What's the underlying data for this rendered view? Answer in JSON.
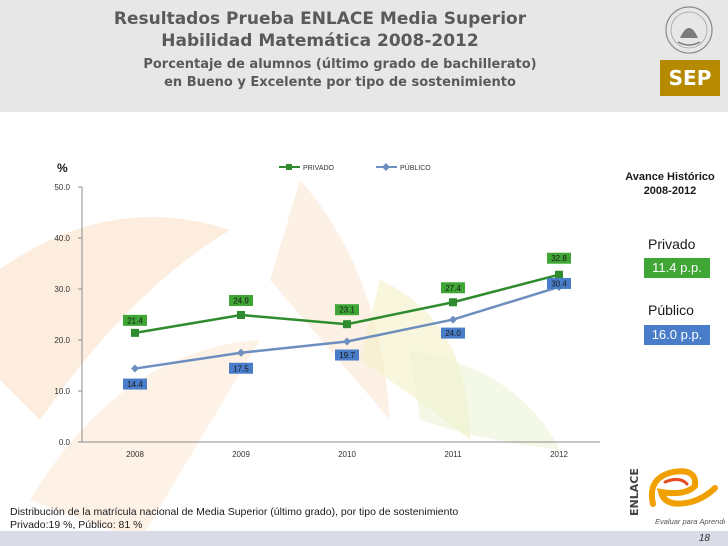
{
  "header": {
    "title_line1": "Resultados Prueba ENLACE Media Superior",
    "title_line2": "Habilidad Matemática 2008-2012",
    "subtitle_line1": "Porcentaje de alumnos (último grado de bachillerato)",
    "subtitle_line2": "en Bueno y Excelente por tipo de sostenimiento"
  },
  "logos": {
    "sep": "SEP",
    "enlace": "ENLACE",
    "enlace_tagline": "Evaluar para Aprender"
  },
  "panel": {
    "heading_line1": "Avance Histórico",
    "heading_line2": "2008-2012",
    "privado_label": "Privado",
    "privado_value": "11.4 p.p.",
    "publico_label": "Público",
    "publico_value": "16.0 p.p."
  },
  "footnote": {
    "line1": "Distribución de la matrícula nacional de Media Superior (último grado), por tipo de sostenimiento",
    "line2": "Privado:19 %,  Público: 81 %"
  },
  "page_number": "18",
  "colors": {
    "privado": "#2e8b2e",
    "publico": "#6d8fbf",
    "privado_label_bg": "#3fa535",
    "publico_label_bg": "#4a7dc9",
    "sep_gold": "#b58a00"
  },
  "chart_data": {
    "type": "line",
    "ylabel": "%",
    "categories": [
      "2008",
      "2009",
      "2010",
      "2011",
      "2012"
    ],
    "ylim": [
      0,
      50
    ],
    "yticks": [
      "0.0",
      "10.0",
      "20.0",
      "30.0",
      "40.0",
      "50.0"
    ],
    "grid": false,
    "legend": "top",
    "series": [
      {
        "name": "PRIVADO",
        "values": [
          21.4,
          24.9,
          23.1,
          27.4,
          32.8
        ],
        "labels": [
          "21.4",
          "24.9",
          "23.1",
          "27.4",
          "32.8"
        ],
        "marker": "square"
      },
      {
        "name": "PÚBLICO",
        "values": [
          14.4,
          17.5,
          19.7,
          24.0,
          30.4
        ],
        "labels": [
          "14.4",
          "17.5",
          "19.7",
          "24.0",
          "30.4"
        ],
        "marker": "diamond"
      }
    ]
  }
}
